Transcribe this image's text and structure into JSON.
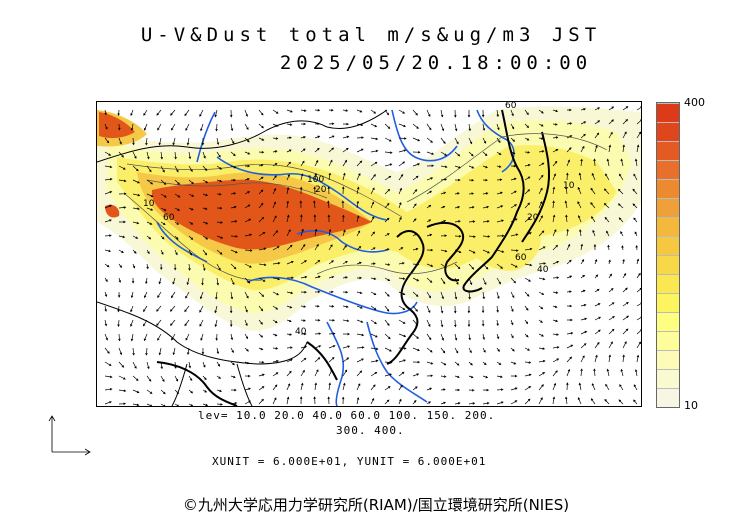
{
  "title": {
    "line1": "U-V&Dust total m/s&ug/m3 JST",
    "line2": "2025/05/20.18:00:00"
  },
  "colorbar": {
    "max_label": "400",
    "min_label": "10",
    "colors": [
      "#f6f6e2",
      "#fafad0",
      "#fcfcb8",
      "#fdfd9c",
      "#fefe80",
      "#fdf560",
      "#fbe850",
      "#f8d848",
      "#f5c840",
      "#f3b83c",
      "#f0a038",
      "#ec8a30",
      "#e8702a",
      "#e45a22",
      "#e0461c",
      "#dc3a18"
    ]
  },
  "levels": {
    "line1": "lev= 10.0 20.0 40.0 60.0 100. 150. 200.",
    "line2": "300. 400."
  },
  "units": "XUNIT = 6.000E+01, YUNIT = 6.000E+01",
  "copyright": "©九州大学応用力学研究所(RIAM)/国立環境研究所(NIES)",
  "contour_labels": [
    "10",
    "60",
    "100",
    "20",
    "40",
    "40",
    "10",
    "60",
    "20",
    "60"
  ],
  "colors": {
    "river": "#1f5fe0",
    "coast": "#000000",
    "dust_high": "#e25a1c",
    "dust_mid": "#f5c542",
    "dust_low": "#fcfca8"
  }
}
